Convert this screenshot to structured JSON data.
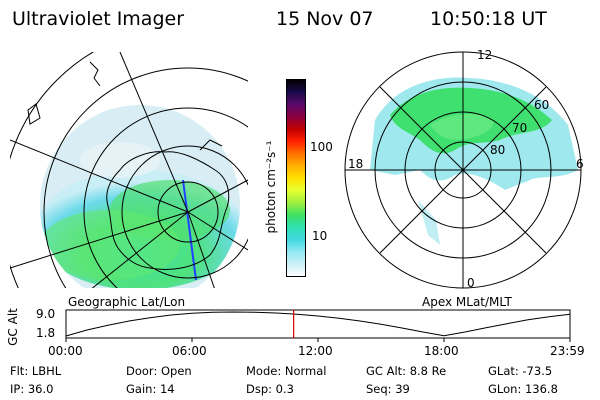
{
  "header": {
    "instrument": "Ultraviolet Imager",
    "date": "15 Nov 07",
    "time": "10:50:18 UT"
  },
  "panels": {
    "geographic_label": "Geographic Lat/Lon",
    "magnetic_label": "Apex MLat/MLT",
    "mlt_labels": {
      "top": "12",
      "left": "18",
      "right": "6",
      "bottom": "0"
    },
    "mlat_labels": [
      "60",
      "70",
      "80"
    ]
  },
  "colorbar": {
    "units_label": "photon cm⁻²s⁻¹",
    "tick_labels": [
      "100",
      "10"
    ],
    "colors": [
      "#000000",
      "#1a0a4a",
      "#5a0a6a",
      "#8a0040",
      "#c00000",
      "#ff2000",
      "#ff7000",
      "#ffb000",
      "#ffe000",
      "#e8ff30",
      "#a0f040",
      "#40e060",
      "#30e0b0",
      "#40d8e0",
      "#90e8f0",
      "#c8f0f8",
      "#ffffff"
    ]
  },
  "altitude_plot": {
    "ylabel": "GC Alt",
    "ytick_max": "9.0",
    "ytick_min": "1.8",
    "xtick_labels": [
      "00:00",
      "06:00",
      "12:00",
      "18:00",
      "23:59"
    ],
    "curve_hours": [
      0,
      1,
      2,
      3,
      4,
      5,
      6,
      7,
      8,
      9,
      10,
      11,
      12,
      13,
      14,
      15,
      16,
      17,
      18,
      19,
      20,
      21,
      22,
      23,
      24
    ],
    "curve_alt": [
      1.8,
      3.6,
      5.0,
      6.3,
      7.3,
      8.1,
      8.6,
      8.9,
      9.0,
      8.9,
      8.7,
      8.3,
      7.8,
      7.1,
      6.3,
      5.3,
      4.2,
      3.0,
      1.9,
      3.0,
      4.3,
      5.5,
      6.7,
      7.6,
      8.3
    ],
    "marker_hour": 10.84,
    "marker_color": "#e00000"
  },
  "footer": {
    "flt": "Flt: LBHL",
    "ip": "IP: 36.0",
    "door": "Door: Open",
    "gain": "Gain: 14",
    "mode": "Mode: Normal",
    "dsp": "Dsp:    0.3",
    "gc_alt": "GC Alt: 8.8 Re",
    "seq": "Seq: 39",
    "glat": "GLat: -73.5",
    "glon": "GLon: 136.8"
  }
}
